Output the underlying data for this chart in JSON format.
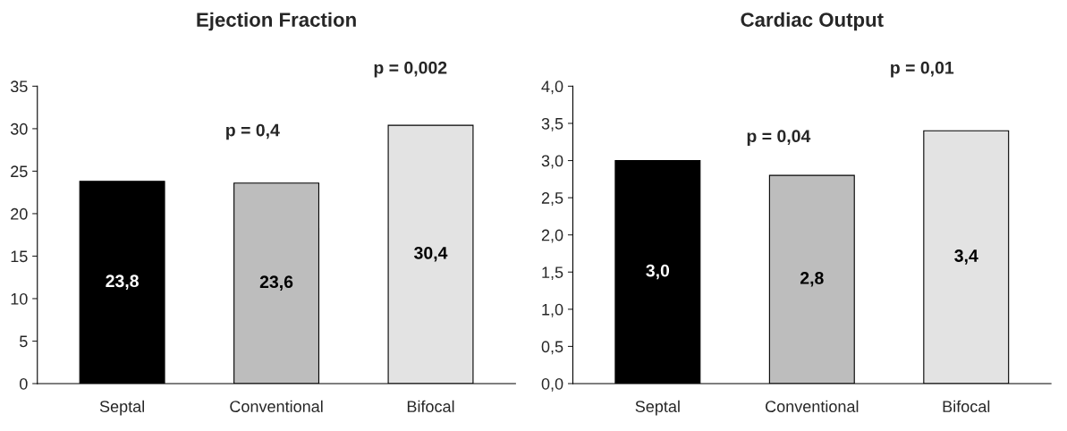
{
  "chart_data": [
    {
      "type": "bar",
      "title": "Ejection Fraction",
      "categories": [
        "Septal",
        "Conventional",
        "Bifocal"
      ],
      "values": [
        23.8,
        23.6,
        30.4
      ],
      "colors": [
        "#000000",
        "#bdbdbd",
        "#e3e3e3"
      ],
      "value_labels": [
        "23,8",
        "23,6",
        "30,4"
      ],
      "ylim": [
        0,
        35
      ],
      "yticks": [
        0,
        5,
        10,
        15,
        20,
        25,
        30,
        35
      ],
      "grid": false,
      "legend": false,
      "annotations": [
        "p = 0,4",
        "p = 0,002"
      ]
    },
    {
      "type": "bar",
      "title": "Cardiac Output",
      "categories": [
        "Septal",
        "Conventional",
        "Bifocal"
      ],
      "values": [
        3.0,
        2.8,
        3.4
      ],
      "colors": [
        "#000000",
        "#bdbdbd",
        "#e3e3e3"
      ],
      "value_labels": [
        "3,0",
        "2,8",
        "3,4"
      ],
      "ylim": [
        0,
        4
      ],
      "yticks": [
        {
          "value": 0,
          "label": "0,0"
        },
        {
          "value": 0.5,
          "label": "0,5"
        },
        {
          "value": 1,
          "label": "1,0"
        },
        {
          "value": 1.5,
          "label": "1,5"
        },
        {
          "value": 2,
          "label": "2,0"
        },
        {
          "value": 2.5,
          "label": "2,5"
        },
        {
          "value": 3,
          "label": "3,0"
        },
        {
          "value": 3.5,
          "label": "3,5"
        },
        {
          "value": 4,
          "label": "4,0"
        }
      ],
      "grid": false,
      "legend": false,
      "annotations": [
        "p = 0,04",
        "p = 0,01"
      ]
    }
  ]
}
